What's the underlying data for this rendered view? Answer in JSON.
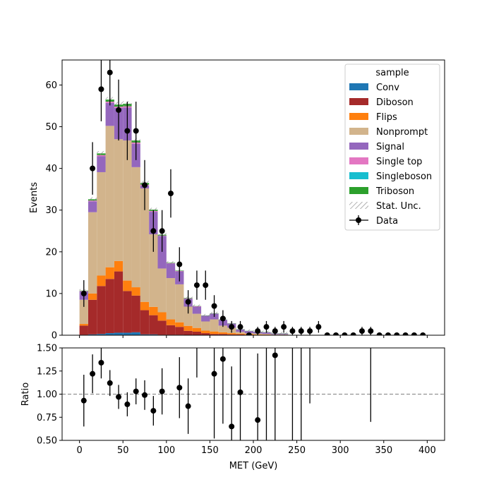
{
  "chart_data": {
    "type": "bar",
    "stacked": true,
    "bin_edges": [
      0,
      10,
      20,
      30,
      40,
      50,
      60,
      70,
      80,
      90,
      100,
      110,
      120,
      130,
      140,
      150,
      160,
      170,
      180,
      190,
      200,
      210,
      220,
      230,
      240,
      250,
      260,
      270,
      280,
      290,
      300,
      310,
      320,
      330,
      340,
      350,
      360,
      370,
      380,
      390,
      400
    ],
    "x_centers": [
      5,
      15,
      25,
      35,
      45,
      55,
      65,
      75,
      85,
      95,
      105,
      115,
      125,
      135,
      145,
      155,
      165,
      175,
      185,
      195,
      205,
      215,
      225,
      235,
      245,
      255,
      265,
      275,
      285,
      295,
      305,
      315,
      325,
      335,
      345,
      355,
      365,
      375,
      385,
      395
    ],
    "xlabel": "MET (GeV)",
    "ylabel": "Events",
    "ratio_ylabel": "Ratio",
    "xlim": [
      -20,
      420
    ],
    "ylim": [
      0,
      66
    ],
    "ratio_ylim": [
      0.5,
      1.5
    ],
    "xticks": [
      "0",
      "50",
      "100",
      "150",
      "200",
      "250",
      "300",
      "350",
      "400"
    ],
    "xtick_values": [
      0,
      50,
      100,
      150,
      200,
      250,
      300,
      350,
      400
    ],
    "yticks": [
      "0",
      "10",
      "20",
      "30",
      "40",
      "50",
      "60"
    ],
    "ytick_values": [
      0,
      10,
      20,
      30,
      40,
      50,
      60
    ],
    "ratio_yticks": [
      "0.50",
      "0.75",
      "1.00",
      "1.25",
      "1.50"
    ],
    "ratio_ytick_values": [
      0.5,
      0.75,
      1.0,
      1.25,
      1.5
    ],
    "legend_title": "sample",
    "legend_position": "top-right",
    "series": [
      {
        "name": "Conv",
        "color": "#1f77b4",
        "values": [
          0.1,
          0.2,
          0.3,
          0.5,
          0.6,
          0.6,
          0.7,
          0.2,
          0.2,
          0.1,
          0.1,
          0.1,
          0.05,
          0.05,
          0,
          0,
          0,
          0,
          0,
          0,
          0,
          0,
          0,
          0,
          0,
          0,
          0,
          0,
          0,
          0,
          0,
          0,
          0,
          0,
          0,
          0,
          0,
          0,
          0,
          0
        ]
      },
      {
        "name": "Diboson",
        "color": "#a52a2a",
        "values": [
          2.2,
          8.3,
          11.5,
          13.0,
          14.7,
          10.0,
          8.8,
          5.8,
          4.6,
          3.4,
          2.3,
          1.9,
          1.0,
          0.8,
          0.5,
          0.3,
          0.3,
          0.2,
          0.2,
          0.1,
          0.1,
          0.1,
          0,
          0,
          0,
          0,
          0,
          0,
          0,
          0,
          0,
          0,
          0,
          0,
          0,
          0,
          0,
          0,
          0,
          0
        ]
      },
      {
        "name": "Flips",
        "color": "#ff7f0e",
        "values": [
          0.4,
          1.5,
          2.5,
          2.8,
          2.5,
          2.5,
          2.0,
          2.0,
          2.0,
          2.0,
          1.4,
          1.1,
          1.2,
          0.9,
          0.6,
          0.6,
          0.4,
          0.3,
          0.2,
          0.2,
          0.1,
          0.1,
          0.1,
          0.1,
          0,
          0,
          0,
          0,
          0,
          0,
          0,
          0,
          0,
          0,
          0,
          0,
          0,
          0,
          0,
          0
        ]
      },
      {
        "name": "Nonprompt",
        "color": "#d2b48c",
        "values": [
          5.8,
          19.5,
          24.8,
          33.9,
          29.2,
          33.6,
          28.8,
          27.2,
          17.4,
          10.5,
          9.9,
          9.1,
          4.6,
          3.4,
          2.2,
          2.9,
          1.6,
          1.3,
          0.4,
          0.2,
          0.2,
          0.1,
          0.1,
          0.1,
          0,
          0,
          0,
          0,
          0,
          0,
          0,
          0,
          0,
          0,
          0,
          0,
          0,
          0,
          0,
          0
        ]
      },
      {
        "name": "Signal",
        "color": "#9467bd",
        "values": [
          2.0,
          2.6,
          3.8,
          5.5,
          7.5,
          7.9,
          5.6,
          0.7,
          5.4,
          7.8,
          3.5,
          3.1,
          1.9,
          1.7,
          1.4,
          1.4,
          1.4,
          1.0,
          0.6,
          0.5,
          0.4,
          0.4,
          0.2,
          0.2,
          0,
          0,
          0,
          0,
          0,
          0,
          0,
          0,
          0,
          0,
          0,
          0,
          0,
          0,
          0,
          0
        ]
      },
      {
        "name": "Single top",
        "color": "#e377c2",
        "values": [
          0.1,
          0.2,
          0.3,
          0.3,
          0.3,
          0.3,
          0.3,
          0.2,
          0.2,
          0.1,
          0.1,
          0.1,
          0.1,
          0.1,
          0,
          0,
          0,
          0,
          0,
          0,
          0,
          0,
          0,
          0,
          0,
          0,
          0,
          0,
          0,
          0,
          0,
          0,
          0,
          0,
          0,
          0,
          0,
          0,
          0,
          0
        ]
      },
      {
        "name": "Singleboson",
        "color": "#17becf",
        "values": [
          0,
          0,
          0,
          0,
          0,
          0,
          0,
          0,
          0,
          0,
          0,
          0,
          0,
          0,
          0,
          0,
          0,
          0,
          0,
          0,
          0,
          0,
          0,
          0,
          0,
          0,
          0,
          0,
          0,
          0,
          0,
          0,
          0,
          0,
          0,
          0,
          0,
          0,
          0,
          0
        ]
      },
      {
        "name": "Triboson",
        "color": "#2ca02c",
        "values": [
          0.1,
          0.3,
          0.4,
          0.5,
          0.5,
          0.6,
          0.5,
          0.4,
          0.3,
          0.2,
          0.1,
          0.1,
          0.1,
          0.05,
          0.05,
          0.05,
          0.05,
          0.05,
          0.05,
          0.05,
          0.05,
          0.05,
          0.05,
          0.05,
          0.05,
          0.05,
          0.05,
          0.05,
          0,
          0,
          0,
          0,
          0,
          0,
          0,
          0,
          0,
          0,
          0,
          0
        ]
      }
    ],
    "stat_unc_label": "Stat. Unc.",
    "data_label": "Data",
    "data": {
      "y": [
        10,
        40,
        59,
        63,
        54,
        49,
        49,
        36,
        25,
        25,
        34,
        17,
        8,
        12,
        12,
        7,
        4,
        2,
        2,
        0,
        1,
        2,
        1,
        2,
        1,
        1,
        1,
        2,
        0,
        0,
        0,
        0,
        1,
        1,
        0,
        0,
        0,
        0,
        0,
        0
      ],
      "yerr": [
        3.2,
        6.3,
        7.7,
        7.9,
        7.3,
        7.0,
        7.0,
        6.0,
        5.0,
        5.0,
        5.8,
        4.1,
        2.8,
        3.5,
        3.5,
        2.6,
        2.0,
        1.4,
        1.4,
        0,
        1.0,
        1.4,
        1.0,
        1.4,
        1.0,
        1.0,
        1.0,
        1.4,
        0,
        0,
        0,
        0,
        1.0,
        1.0,
        0,
        0,
        0,
        0,
        0,
        0
      ]
    },
    "ratio": {
      "x": [
        5,
        15,
        25,
        35,
        45,
        55,
        65,
        75,
        85,
        95,
        115,
        125,
        155,
        165,
        175,
        185,
        205,
        225
      ],
      "y": [
        0.93,
        1.22,
        1.34,
        1.12,
        0.97,
        0.89,
        1.03,
        0.99,
        0.82,
        1.03,
        1.07,
        0.87,
        1.22,
        1.38,
        0.65,
        1.02,
        0.72,
        1.42
      ],
      "yerr": [
        0.28,
        0.21,
        0.17,
        0.14,
        0.13,
        0.13,
        0.14,
        0.16,
        0.16,
        0.25,
        0.33,
        0.3,
        0.7,
        0.7,
        0.65,
        0.75,
        0.72,
        0.95
      ],
      "err_only_x": [
        135,
        215,
        245,
        255,
        265,
        335
      ],
      "err_only_low": [
        1.18,
        0.5,
        0.5,
        0.5,
        0.9,
        0.7
      ],
      "err_only_high": [
        1.5,
        1.5,
        1.5,
        1.5,
        1.5,
        1.5
      ],
      "reference": 1.0
    }
  }
}
